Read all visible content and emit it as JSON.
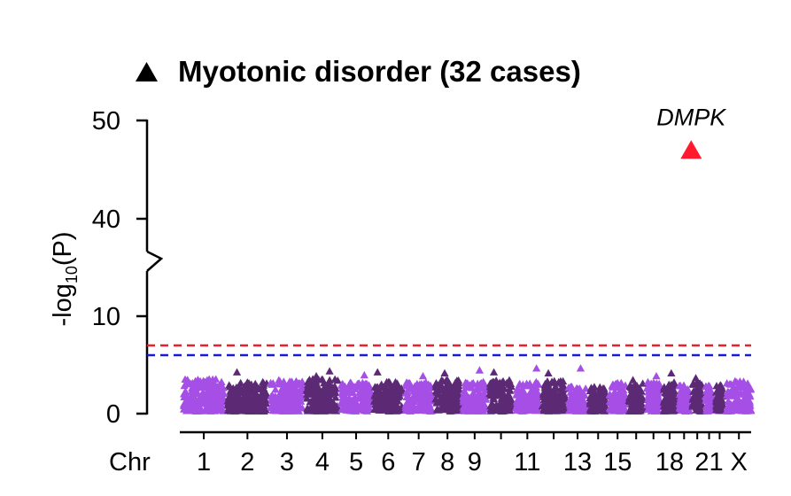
{
  "chart_data": {
    "type": "scatter",
    "subtype": "manhattan",
    "title": "Myotonic disorder (32 cases)",
    "title_marker": "triangle",
    "ylabel": "-log",
    "ylabel_subscript": "10",
    "ylabel_suffix": "(P)",
    "xlabel": "Chr",
    "y_axis_break": [
      12,
      36
    ],
    "ylim": [
      0,
      50
    ],
    "yticks": [
      0,
      10,
      40,
      50
    ],
    "chromosome_labels": [
      "1",
      "2",
      "3",
      "4",
      "5",
      "6",
      "7",
      "8",
      "9",
      "11",
      "13",
      "15",
      "18",
      "21",
      "X"
    ],
    "chromosomes": [
      {
        "chr": "1",
        "max": 3.3,
        "peaks": []
      },
      {
        "chr": "2",
        "max": 3.0,
        "peaks": [
          4.0
        ]
      },
      {
        "chr": "3",
        "max": 3.2,
        "peaks": []
      },
      {
        "chr": "4",
        "max": 3.3,
        "peaks": [
          4.1,
          3.6
        ]
      },
      {
        "chr": "5",
        "max": 3.0,
        "peaks": [
          3.7
        ]
      },
      {
        "chr": "6",
        "max": 3.0,
        "peaks": [
          4.0
        ]
      },
      {
        "chr": "7",
        "max": 3.0,
        "peaks": [
          3.6
        ]
      },
      {
        "chr": "8",
        "max": 3.3,
        "peaks": [
          3.9
        ]
      },
      {
        "chr": "9",
        "max": 3.0,
        "peaks": [
          4.2
        ]
      },
      {
        "chr": "10",
        "max": 3.2,
        "peaks": [
          4.0
        ]
      },
      {
        "chr": "11",
        "max": 3.0,
        "peaks": [
          4.4
        ]
      },
      {
        "chr": "12",
        "max": 3.1,
        "peaks": [
          3.9
        ]
      },
      {
        "chr": "13",
        "max": 2.6,
        "peaks": [
          4.4
        ]
      },
      {
        "chr": "14",
        "max": 2.5,
        "peaks": []
      },
      {
        "chr": "15",
        "max": 2.9,
        "peaks": []
      },
      {
        "chr": "16",
        "max": 2.9,
        "peaks": [
          3.2
        ]
      },
      {
        "chr": "17",
        "max": 3.0,
        "peaks": [
          3.6
        ]
      },
      {
        "chr": "18",
        "max": 3.0,
        "peaks": [
          3.9
        ]
      },
      {
        "chr": "19",
        "max": 2.7,
        "peaks": []
      },
      {
        "chr": "20",
        "max": 3.0,
        "peaks": [
          3.4
        ]
      },
      {
        "chr": "21",
        "max": 2.6,
        "peaks": []
      },
      {
        "chr": "22",
        "max": 2.7,
        "peaks": []
      },
      {
        "chr": "X",
        "max": 3.1,
        "peaks": []
      }
    ],
    "highlight": {
      "label": "DMPK",
      "chr": "19",
      "value": 47,
      "color": "#ff1a2e"
    },
    "threshold_lines": [
      {
        "value": 7,
        "color": "#e8202a"
      },
      {
        "value": 6,
        "color": "#1a1ad6"
      }
    ],
    "series_colors": [
      "#a64fe6",
      "#5c2a75"
    ]
  }
}
